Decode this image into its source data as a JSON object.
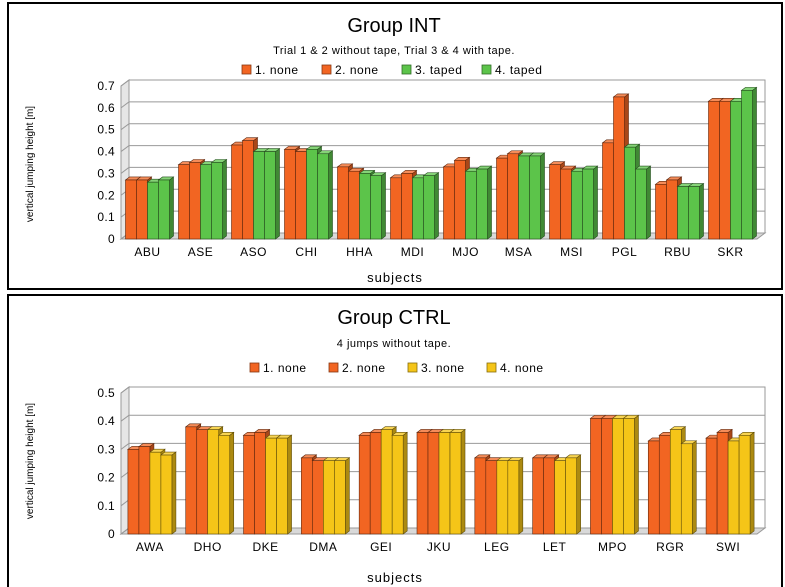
{
  "chart_data": [
    {
      "type": "bar",
      "title": "Group INT",
      "subtitle": "Trial 1 & 2 without tape, Trial 3 & 4 with tape.",
      "xlabel": "subjects",
      "ylabel": "vertical jumping height [m]",
      "ylim": [
        0,
        0.7
      ],
      "yticks": [
        "0",
        "0.1",
        "0.2",
        "0.3",
        "0.4",
        "0.5",
        "0.6",
        "0.7"
      ],
      "grid": true,
      "legend_position": "top",
      "categories": [
        "ABU",
        "ASE",
        "ASO",
        "CHI",
        "HHA",
        "MDI",
        "MJO",
        "MSA",
        "MSI",
        "PGL",
        "RBU",
        "SKR"
      ],
      "series": [
        {
          "name": "1. none",
          "color": "#f26522",
          "values": [
            0.27,
            0.34,
            0.43,
            0.41,
            0.33,
            0.28,
            0.33,
            0.37,
            0.34,
            0.44,
            0.25,
            0.63
          ]
        },
        {
          "name": "2. none",
          "color": "#f26522",
          "values": [
            0.27,
            0.35,
            0.45,
            0.4,
            0.31,
            0.3,
            0.36,
            0.39,
            0.32,
            0.65,
            0.27,
            0.63
          ]
        },
        {
          "name": "3. taped",
          "color": "#5cc44a",
          "values": [
            0.26,
            0.34,
            0.4,
            0.41,
            0.3,
            0.28,
            0.31,
            0.38,
            0.31,
            0.42,
            0.24,
            0.63
          ]
        },
        {
          "name": "4. taped",
          "color": "#5cc44a",
          "values": [
            0.27,
            0.35,
            0.4,
            0.39,
            0.29,
            0.29,
            0.32,
            0.38,
            0.32,
            0.32,
            0.24,
            0.68
          ]
        }
      ]
    },
    {
      "type": "bar",
      "title": "Group CTRL",
      "subtitle": "4 jumps without tape.",
      "xlabel": "subjects",
      "ylabel": "vertical jumping height [m]",
      "ylim": [
        0,
        0.5
      ],
      "yticks": [
        "0",
        "0.1",
        "0.2",
        "0.3",
        "0.4",
        "0.5"
      ],
      "grid": true,
      "legend_position": "top",
      "categories": [
        "AWA",
        "DHO",
        "DKE",
        "DMA",
        "GEI",
        "JKU",
        "LEG",
        "LET",
        "MPO",
        "RGR",
        "SWI"
      ],
      "series": [
        {
          "name": "1. none",
          "color": "#f26522",
          "values": [
            0.3,
            0.38,
            0.35,
            0.27,
            0.35,
            0.36,
            0.27,
            0.27,
            0.41,
            0.33,
            0.34
          ]
        },
        {
          "name": "2. none",
          "color": "#f26522",
          "values": [
            0.31,
            0.37,
            0.36,
            0.26,
            0.36,
            0.36,
            0.26,
            0.27,
            0.41,
            0.35,
            0.36
          ]
        },
        {
          "name": "3. none",
          "color": "#f5c518",
          "values": [
            0.29,
            0.37,
            0.34,
            0.26,
            0.37,
            0.36,
            0.26,
            0.26,
            0.41,
            0.37,
            0.33
          ]
        },
        {
          "name": "4. none",
          "color": "#f5c518",
          "values": [
            0.28,
            0.35,
            0.34,
            0.26,
            0.35,
            0.36,
            0.26,
            0.27,
            0.41,
            0.32,
            0.35
          ]
        }
      ]
    }
  ]
}
